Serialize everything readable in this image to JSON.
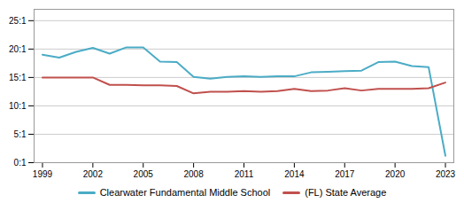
{
  "chart_data": {
    "type": "line",
    "x": [
      1999,
      2000,
      2001,
      2002,
      2003,
      2004,
      2005,
      2006,
      2007,
      2008,
      2009,
      2010,
      2011,
      2012,
      2013,
      2014,
      2015,
      2016,
      2017,
      2018,
      2019,
      2020,
      2021,
      2022,
      2023
    ],
    "series": [
      {
        "name": "Clearwater Fundamental Middle School",
        "color": "#4bacc6",
        "values": [
          19.0,
          18.5,
          19.5,
          20.2,
          19.2,
          20.3,
          20.3,
          17.8,
          17.7,
          15.1,
          14.8,
          15.1,
          15.2,
          15.1,
          15.2,
          15.2,
          15.9,
          16.0,
          16.1,
          16.2,
          17.7,
          17.8,
          17.0,
          16.8,
          1.2
        ]
      },
      {
        "name": "(FL) State Average",
        "color": "#c0504d",
        "values": [
          15.0,
          15.0,
          15.0,
          15.0,
          13.7,
          13.7,
          13.6,
          13.6,
          13.5,
          12.2,
          12.5,
          12.5,
          12.6,
          12.5,
          12.6,
          13.0,
          12.6,
          12.7,
          13.1,
          12.7,
          13.0,
          13.0,
          13.0,
          13.1,
          14.1
        ]
      }
    ],
    "xlim": [
      1998.5,
      2023.5
    ],
    "xticks": [
      1999,
      2002,
      2005,
      2008,
      2011,
      2014,
      2017,
      2020,
      2023
    ],
    "ylim": [
      0,
      27
    ],
    "yticks": [
      {
        "value": 0,
        "label": "0:1"
      },
      {
        "value": 5,
        "label": "5:1"
      },
      {
        "value": 10,
        "label": "10:1"
      },
      {
        "value": 15,
        "label": "15:1"
      },
      {
        "value": 20,
        "label": "20:1"
      },
      {
        "value": 25,
        "label": "25:1"
      }
    ],
    "grid": true,
    "legend": "bottom"
  }
}
